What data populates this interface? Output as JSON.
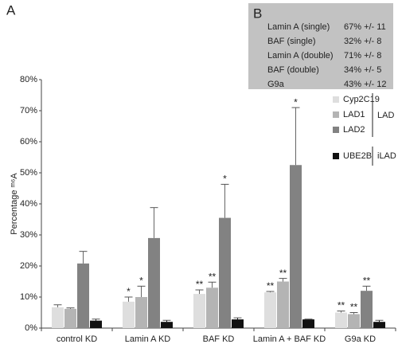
{
  "panel_label": "A",
  "panel_b": {
    "label": "B",
    "rows": [
      [
        "Lamin A (single)",
        "67% +/- 11"
      ],
      [
        "BAF (single)",
        "32% +/- 8"
      ],
      [
        "Lamin A  (double)",
        "71% +/- 8"
      ],
      [
        "BAF (double)",
        "34% +/- 5"
      ],
      [
        "G9a",
        "43% +/- 12"
      ]
    ]
  },
  "chart_data": {
    "type": "bar",
    "ylabel": "Percentage ᵐ⁶A",
    "categories": [
      "control KD",
      "Lamin A KD",
      "BAF KD",
      "Lamin A + BAF KD",
      "G9a KD"
    ],
    "series": [
      {
        "name": "Cyp2C19",
        "color": "#dedede",
        "values": [
          6.7,
          8.5,
          11,
          11.5,
          5
        ],
        "errors": [
          0.8,
          1.5,
          1.3,
          0.3,
          0.5
        ],
        "significance": [
          null,
          "*",
          "**",
          "**",
          "**"
        ]
      },
      {
        "name": "LAD1",
        "color": "#b4b4b4",
        "values": [
          6.2,
          10,
          13,
          15,
          4.5
        ],
        "errors": [
          0.3,
          3.5,
          1.8,
          1,
          0.5
        ],
        "significance": [
          null,
          "*",
          "**",
          "**",
          "**"
        ]
      },
      {
        "name": "LAD2",
        "color": "#828282",
        "values": [
          20.8,
          29,
          35.5,
          52.5,
          12
        ],
        "errors": [
          3.9,
          9.8,
          10.8,
          18.5,
          1.5
        ],
        "significance": [
          null,
          null,
          "*",
          "*",
          "**"
        ]
      },
      {
        "name": "UBE2B",
        "color": "#111111",
        "values": [
          2.4,
          2,
          2.8,
          2.8,
          2
        ],
        "errors": [
          0.5,
          0.5,
          0.5,
          0.1,
          0.5
        ],
        "significance": [
          null,
          null,
          null,
          null,
          null
        ]
      }
    ],
    "legend_groups": [
      "LAD",
      "iLAD"
    ],
    "ylim": [
      0,
      80
    ],
    "yticks": [
      {
        "value": 0,
        "label": "0%"
      },
      {
        "value": 10,
        "label": "10%"
      },
      {
        "value": 20,
        "label": "20%"
      },
      {
        "value": 30,
        "label": "30%"
      },
      {
        "value": 40,
        "label": "40%"
      },
      {
        "value": 50,
        "label": "50%"
      },
      {
        "value": 60,
        "label": "60%"
      },
      {
        "value": 70,
        "label": "70%"
      },
      {
        "value": 80,
        "label": "80%"
      }
    ]
  }
}
